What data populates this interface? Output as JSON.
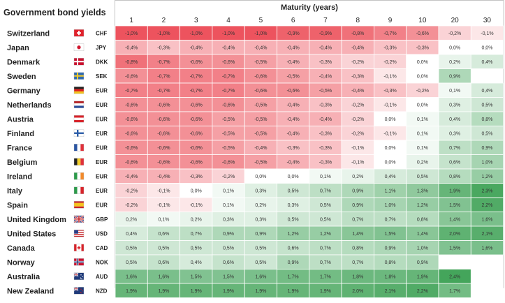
{
  "chart_data": {
    "type": "heatmap",
    "title": "Government bond yields",
    "xlabel": "Maturity (years)",
    "maturities": [
      "1",
      "2",
      "3",
      "4",
      "5",
      "6",
      "7",
      "8",
      "9",
      "10",
      "20",
      "30"
    ],
    "colors": {
      "negative": "#ec4a55",
      "positive": "#3aa052",
      "neutral": "#ffffff",
      "grid": "#ffffff",
      "border": "#c4c4c4"
    },
    "rows": [
      {
        "country": "Switzerland",
        "currency": "CHF",
        "flag": "switzerland-flag-icon",
        "values": [
          -1.0,
          -1.0,
          -1.0,
          -1.0,
          -1.0,
          -0.9,
          -0.9,
          -0.8,
          -0.7,
          -0.6,
          -0.2,
          -0.1
        ],
        "labels": [
          "-1,0%",
          "-1,0%",
          "-1,0%",
          "-1,0%",
          "-1,0%",
          "-0,9%",
          "-0,9%",
          "-0,8%",
          "-0,7%",
          "-0,6%",
          "-0,2%",
          "-0,1%"
        ]
      },
      {
        "country": "Japan",
        "currency": "JPY",
        "flag": "japan-flag-icon",
        "values": [
          -0.4,
          -0.3,
          -0.4,
          -0.4,
          -0.4,
          -0.4,
          -0.4,
          -0.4,
          -0.3,
          -0.3,
          0.0,
          0.0
        ],
        "labels": [
          "-0,4%",
          "-0,3%",
          "-0,4%",
          "-0,4%",
          "-0,4%",
          "-0,4%",
          "-0,4%",
          "-0,4%",
          "-0,3%",
          "-0,3%",
          "0,0%",
          "0,0%"
        ]
      },
      {
        "country": "Denmark",
        "currency": "DKK",
        "flag": "denmark-flag-icon",
        "values": [
          -0.8,
          -0.7,
          -0.6,
          -0.6,
          -0.5,
          -0.4,
          -0.3,
          -0.2,
          -0.2,
          0.0,
          0.2,
          0.4
        ],
        "labels": [
          "-0,8%",
          "-0,7%",
          "-0,6%",
          "-0,6%",
          "-0,5%",
          "-0,4%",
          "-0,3%",
          "-0,2%",
          "-0,2%",
          "0,0%",
          "0,2%",
          "0,4%"
        ]
      },
      {
        "country": "Sweden",
        "currency": "SEK",
        "flag": "sweden-flag-icon",
        "values": [
          -0.6,
          -0.7,
          -0.7,
          -0.7,
          -0.6,
          -0.5,
          -0.4,
          -0.3,
          -0.1,
          0.0,
          0.9,
          null
        ],
        "labels": [
          "-0,6%",
          "-0,7%",
          "-0,7%",
          "-0,7%",
          "-0,6%",
          "-0,5%",
          "-0,4%",
          "-0,3%",
          "-0,1%",
          "0,0%",
          "0,9%",
          ""
        ]
      },
      {
        "country": "Germany",
        "currency": "EUR",
        "flag": "germany-flag-icon",
        "values": [
          -0.7,
          -0.7,
          -0.7,
          -0.7,
          -0.6,
          -0.6,
          -0.5,
          -0.4,
          -0.3,
          -0.2,
          0.1,
          0.4
        ],
        "labels": [
          "-0,7%",
          "-0,7%",
          "-0,7%",
          "-0,7%",
          "-0,6%",
          "-0,6%",
          "-0,5%",
          "-0,4%",
          "-0,3%",
          "-0,2%",
          "0,1%",
          "0,4%"
        ]
      },
      {
        "country": "Netherlands",
        "currency": "EUR",
        "flag": "netherlands-flag-icon",
        "values": [
          -0.6,
          -0.6,
          -0.6,
          -0.6,
          -0.5,
          -0.4,
          -0.3,
          -0.2,
          -0.1,
          0.0,
          0.3,
          0.5
        ],
        "labels": [
          "-0,6%",
          "-0,6%",
          "-0,6%",
          "-0,6%",
          "-0,5%",
          "-0,4%",
          "-0,3%",
          "-0,2%",
          "-0,1%",
          "0,0%",
          "0,3%",
          "0,5%"
        ]
      },
      {
        "country": "Austria",
        "currency": "EUR",
        "flag": "austria-flag-icon",
        "values": [
          -0.6,
          -0.6,
          -0.6,
          -0.5,
          -0.5,
          -0.4,
          -0.4,
          -0.2,
          0.0,
          0.1,
          0.4,
          0.8
        ],
        "labels": [
          "-0,6%",
          "-0,6%",
          "-0,6%",
          "-0,5%",
          "-0,5%",
          "-0,4%",
          "-0,4%",
          "-0,2%",
          "0,0%",
          "0,1%",
          "0,4%",
          "0,8%"
        ]
      },
      {
        "country": "Finland",
        "currency": "EUR",
        "flag": "finland-flag-icon",
        "values": [
          -0.6,
          -0.6,
          -0.6,
          -0.5,
          -0.5,
          -0.4,
          -0.3,
          -0.2,
          -0.1,
          0.1,
          0.3,
          0.5
        ],
        "labels": [
          "-0,6%",
          "-0,6%",
          "-0,6%",
          "-0,5%",
          "-0,5%",
          "-0,4%",
          "-0,3%",
          "-0,2%",
          "-0,1%",
          "0,1%",
          "0,3%",
          "0,5%"
        ]
      },
      {
        "country": "France",
        "currency": "EUR",
        "flag": "france-flag-icon",
        "values": [
          -0.6,
          -0.6,
          -0.6,
          -0.5,
          -0.4,
          -0.3,
          -0.3,
          -0.1,
          0.0,
          0.1,
          0.7,
          0.9
        ],
        "labels": [
          "-0,6%",
          "-0,6%",
          "-0,6%",
          "-0,5%",
          "-0,4%",
          "-0,3%",
          "-0,3%",
          "-0,1%",
          "0,0%",
          "0,1%",
          "0,7%",
          "0,9%"
        ]
      },
      {
        "country": "Belgium",
        "currency": "EUR",
        "flag": "belgium-flag-icon",
        "values": [
          -0.6,
          -0.6,
          -0.6,
          -0.6,
          -0.5,
          -0.4,
          -0.3,
          -0.1,
          0.0,
          0.2,
          0.6,
          1.0
        ],
        "labels": [
          "-0,6%",
          "-0,6%",
          "-0,6%",
          "-0,6%",
          "-0,5%",
          "-0,4%",
          "-0,3%",
          "-0,1%",
          "0,0%",
          "0,2%",
          "0,6%",
          "1,0%"
        ]
      },
      {
        "country": "Ireland",
        "currency": "EUR",
        "flag": "ireland-flag-icon",
        "values": [
          -0.4,
          -0.4,
          -0.3,
          -0.2,
          0.0,
          0.0,
          0.1,
          0.2,
          0.4,
          0.5,
          0.8,
          1.2
        ],
        "labels": [
          "-0,4%",
          "-0,4%",
          "-0,3%",
          "-0,2%",
          "0,0%",
          "0,0%",
          "0,1%",
          "0,2%",
          "0,4%",
          "0,5%",
          "0,8%",
          "1,2%"
        ]
      },
      {
        "country": "Italy",
        "currency": "EUR",
        "flag": "italy-flag-icon",
        "values": [
          -0.2,
          -0.1,
          0.0,
          0.1,
          0.3,
          0.5,
          0.7,
          0.9,
          1.1,
          1.3,
          1.9,
          2.3
        ],
        "labels": [
          "-0,2%",
          "-0,1%",
          "0,0%",
          "0,1%",
          "0,3%",
          "0,5%",
          "0,7%",
          "0,9%",
          "1,1%",
          "1,3%",
          "1,9%",
          "2,3%"
        ]
      },
      {
        "country": "Spain",
        "currency": "EUR",
        "flag": "spain-flag-icon",
        "values": [
          -0.2,
          -0.1,
          -0.1,
          0.1,
          0.2,
          0.3,
          0.5,
          0.9,
          1.0,
          1.2,
          1.5,
          2.2
        ],
        "labels": [
          "-0,2%",
          "-0,1%",
          "-0,1%",
          "0,1%",
          "0,2%",
          "0,3%",
          "0,5%",
          "0,9%",
          "1,0%",
          "1,2%",
          "1,5%",
          "2,2%"
        ]
      },
      {
        "country": "United Kingdom",
        "currency": "GBP",
        "flag": "united-kingdom-flag-icon",
        "values": [
          0.2,
          0.1,
          0.2,
          0.3,
          0.3,
          0.5,
          0.5,
          0.7,
          0.7,
          0.8,
          1.4,
          1.6
        ],
        "labels": [
          "0,2%",
          "0,1%",
          "0,2%",
          "0,3%",
          "0,3%",
          "0,5%",
          "0,5%",
          "0,7%",
          "0,7%",
          "0,8%",
          "1,4%",
          "1,6%"
        ]
      },
      {
        "country": "United States",
        "currency": "USD",
        "flag": "united-states-flag-icon",
        "values": [
          0.4,
          0.6,
          0.7,
          0.9,
          0.9,
          1.2,
          1.2,
          1.4,
          1.5,
          1.4,
          2.0,
          2.1
        ],
        "labels": [
          "0,4%",
          "0,6%",
          "0,7%",
          "0,9%",
          "0,9%",
          "1,2%",
          "1,2%",
          "1,4%",
          "1,5%",
          "1,4%",
          "2,0%",
          "2,1%"
        ]
      },
      {
        "country": "Canada",
        "currency": "CAD",
        "flag": "canada-flag-icon",
        "values": [
          0.5,
          0.5,
          0.5,
          0.5,
          0.5,
          0.6,
          0.7,
          0.8,
          0.9,
          1.0,
          1.5,
          1.6
        ],
        "labels": [
          "0,5%",
          "0,5%",
          "0,5%",
          "0,5%",
          "0,5%",
          "0,6%",
          "0,7%",
          "0,8%",
          "0,9%",
          "1,0%",
          "1,5%",
          "1,6%"
        ]
      },
      {
        "country": "Norway",
        "currency": "NOK",
        "flag": "norway-flag-icon",
        "values": [
          0.5,
          0.6,
          0.4,
          0.6,
          0.5,
          0.9,
          0.7,
          0.7,
          0.8,
          0.9,
          null,
          null
        ],
        "labels": [
          "0,5%",
          "0,6%",
          "0,4%",
          "0,6%",
          "0,5%",
          "0,9%",
          "0,7%",
          "0,7%",
          "0,8%",
          "0,9%",
          "",
          ""
        ]
      },
      {
        "country": "Australia",
        "currency": "AUD",
        "flag": "australia-flag-icon",
        "values": [
          1.6,
          1.6,
          1.5,
          1.5,
          1.6,
          1.7,
          1.7,
          1.8,
          1.8,
          1.9,
          2.4,
          null
        ],
        "labels": [
          "1,6%",
          "1,6%",
          "1,5%",
          "1,5%",
          "1,6%",
          "1,7%",
          "1,7%",
          "1,8%",
          "1,8%",
          "1,9%",
          "2,4%",
          ""
        ]
      },
      {
        "country": "New Zealand",
        "currency": "NZD",
        "flag": "new-zealand-flag-icon",
        "values": [
          1.9,
          1.9,
          1.9,
          1.9,
          1.9,
          1.9,
          1.9,
          2.0,
          2.1,
          2.2,
          1.7,
          null
        ],
        "labels": [
          "1,9%",
          "1,9%",
          "1,9%",
          "1,9%",
          "1,9%",
          "1,9%",
          "1,9%",
          "2,0%",
          "2,1%",
          "2,2%",
          "1,7%",
          ""
        ]
      }
    ]
  }
}
